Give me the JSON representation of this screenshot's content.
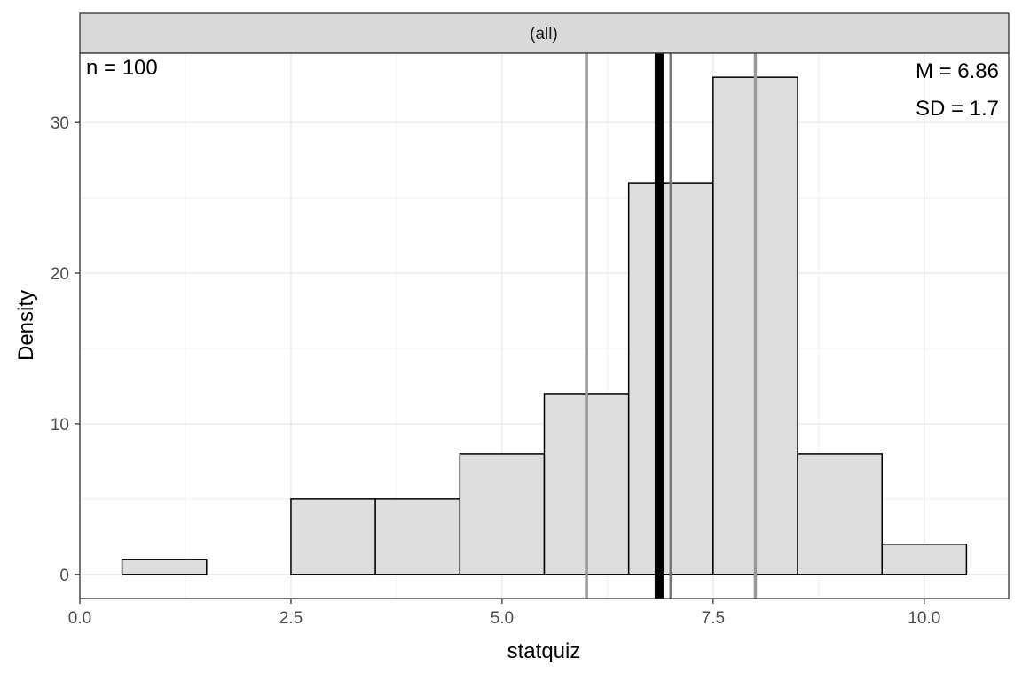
{
  "chart_data": {
    "type": "bar",
    "facet_label": "(all)",
    "xlabel": "statquiz",
    "ylabel": "Density",
    "xlim": [
      0,
      11
    ],
    "ylim": [
      -1.6,
      34.6
    ],
    "x_ticks": [
      0,
      2.5,
      5,
      7.5,
      10
    ],
    "x_tick_labels": [
      "0.0",
      "2.5",
      "5.0",
      "7.5",
      "10.0"
    ],
    "y_ticks": [
      0,
      10,
      20,
      30
    ],
    "y_tick_labels": [
      "0",
      "10",
      "20",
      "30"
    ],
    "grid": true,
    "bins": [
      {
        "x0": 0.5,
        "x1": 1.5,
        "value": 1
      },
      {
        "x0": 1.5,
        "x1": 2.5,
        "value": 0
      },
      {
        "x0": 2.5,
        "x1": 3.5,
        "value": 5
      },
      {
        "x0": 3.5,
        "x1": 4.5,
        "value": 5
      },
      {
        "x0": 4.5,
        "x1": 5.5,
        "value": 8
      },
      {
        "x0": 5.5,
        "x1": 6.5,
        "value": 12
      },
      {
        "x0": 6.5,
        "x1": 7.5,
        "value": 26
      },
      {
        "x0": 7.5,
        "x1": 8.5,
        "value": 33
      },
      {
        "x0": 8.5,
        "x1": 9.5,
        "value": 8
      },
      {
        "x0": 9.5,
        "x1": 10.5,
        "value": 2
      }
    ],
    "reference_lines": [
      {
        "x": 6.0,
        "kind": "quartile",
        "color": "#999999"
      },
      {
        "x": 8.0,
        "kind": "quartile",
        "color": "#999999"
      },
      {
        "x": 7.0,
        "kind": "median",
        "color": "#777777"
      },
      {
        "x": 6.86,
        "kind": "mean",
        "color": "#000000"
      }
    ],
    "annotations": {
      "n": "n = 100",
      "mean": "M = 6.86",
      "sd": "SD = 1.7"
    },
    "colors": {
      "bar_fill": "#dedede",
      "bar_stroke": "#000000",
      "strip_fill": "#d9d9d9",
      "grid": "#ebebeb"
    }
  }
}
